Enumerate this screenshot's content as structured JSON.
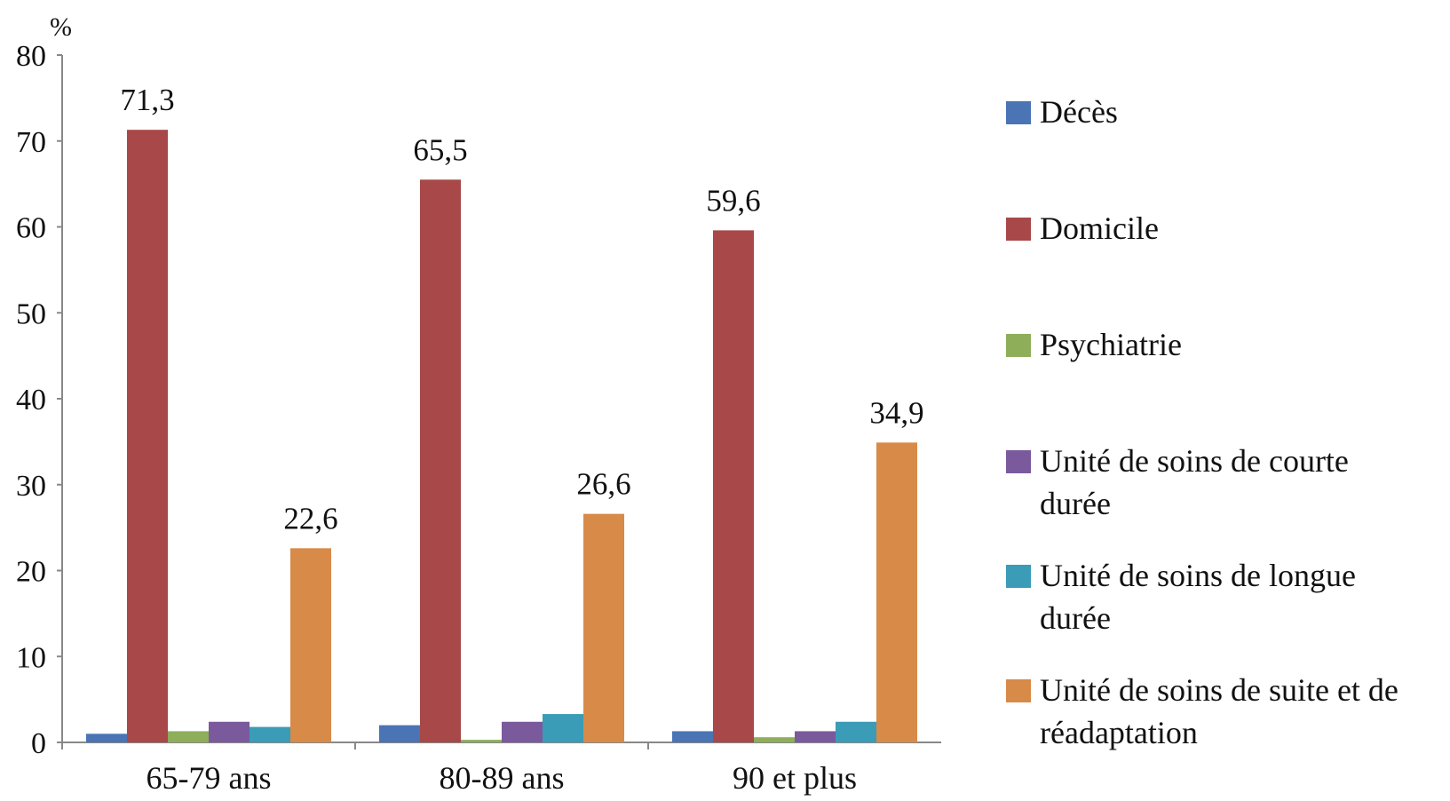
{
  "chart_data": {
    "type": "bar",
    "y_unit": "%",
    "ylim": [
      0,
      80
    ],
    "y_ticks": [
      0,
      10,
      20,
      30,
      40,
      50,
      60,
      70,
      80
    ],
    "grid": false,
    "legend_position": "right",
    "categories": [
      "65-79 ans",
      "80-89 ans",
      "90 et plus"
    ],
    "series": [
      {
        "name": "Décès",
        "color": "#4a74b4",
        "values": [
          1.0,
          2.0,
          1.3
        ]
      },
      {
        "name": "Domicile",
        "color": "#a84848",
        "values": [
          71.3,
          65.5,
          59.6
        ]
      },
      {
        "name": "Psychiatrie",
        "color": "#8eae5a",
        "values": [
          1.3,
          0.3,
          0.6
        ]
      },
      {
        "name": "Unité de soins de courte durée",
        "color": "#7a5a9c",
        "values": [
          2.4,
          2.4,
          1.3
        ]
      },
      {
        "name": "Unité de soins de longue durée",
        "color": "#3a9cb6",
        "values": [
          1.8,
          3.3,
          2.4
        ]
      },
      {
        "name": "Unité de soins de suite et de réadaptation",
        "color": "#d88a48",
        "values": [
          22.6,
          26.6,
          34.9
        ]
      }
    ],
    "data_labels": [
      {
        "series": 1,
        "category": 0,
        "text": "71,3"
      },
      {
        "series": 1,
        "category": 1,
        "text": "65,5"
      },
      {
        "series": 1,
        "category": 2,
        "text": "59,6"
      },
      {
        "series": 5,
        "category": 0,
        "text": "22,6"
      },
      {
        "series": 5,
        "category": 1,
        "text": "26,6"
      },
      {
        "series": 5,
        "category": 2,
        "text": "34,9"
      }
    ],
    "legend_lines": [
      [
        "Décès"
      ],
      [
        "Domicile"
      ],
      [
        "Psychiatrie"
      ],
      [
        "Unité de soins de courte",
        "durée"
      ],
      [
        "Unité de soins de longue",
        "durée"
      ],
      [
        "Unité de soins de suite et de",
        "réadaptation"
      ]
    ]
  }
}
